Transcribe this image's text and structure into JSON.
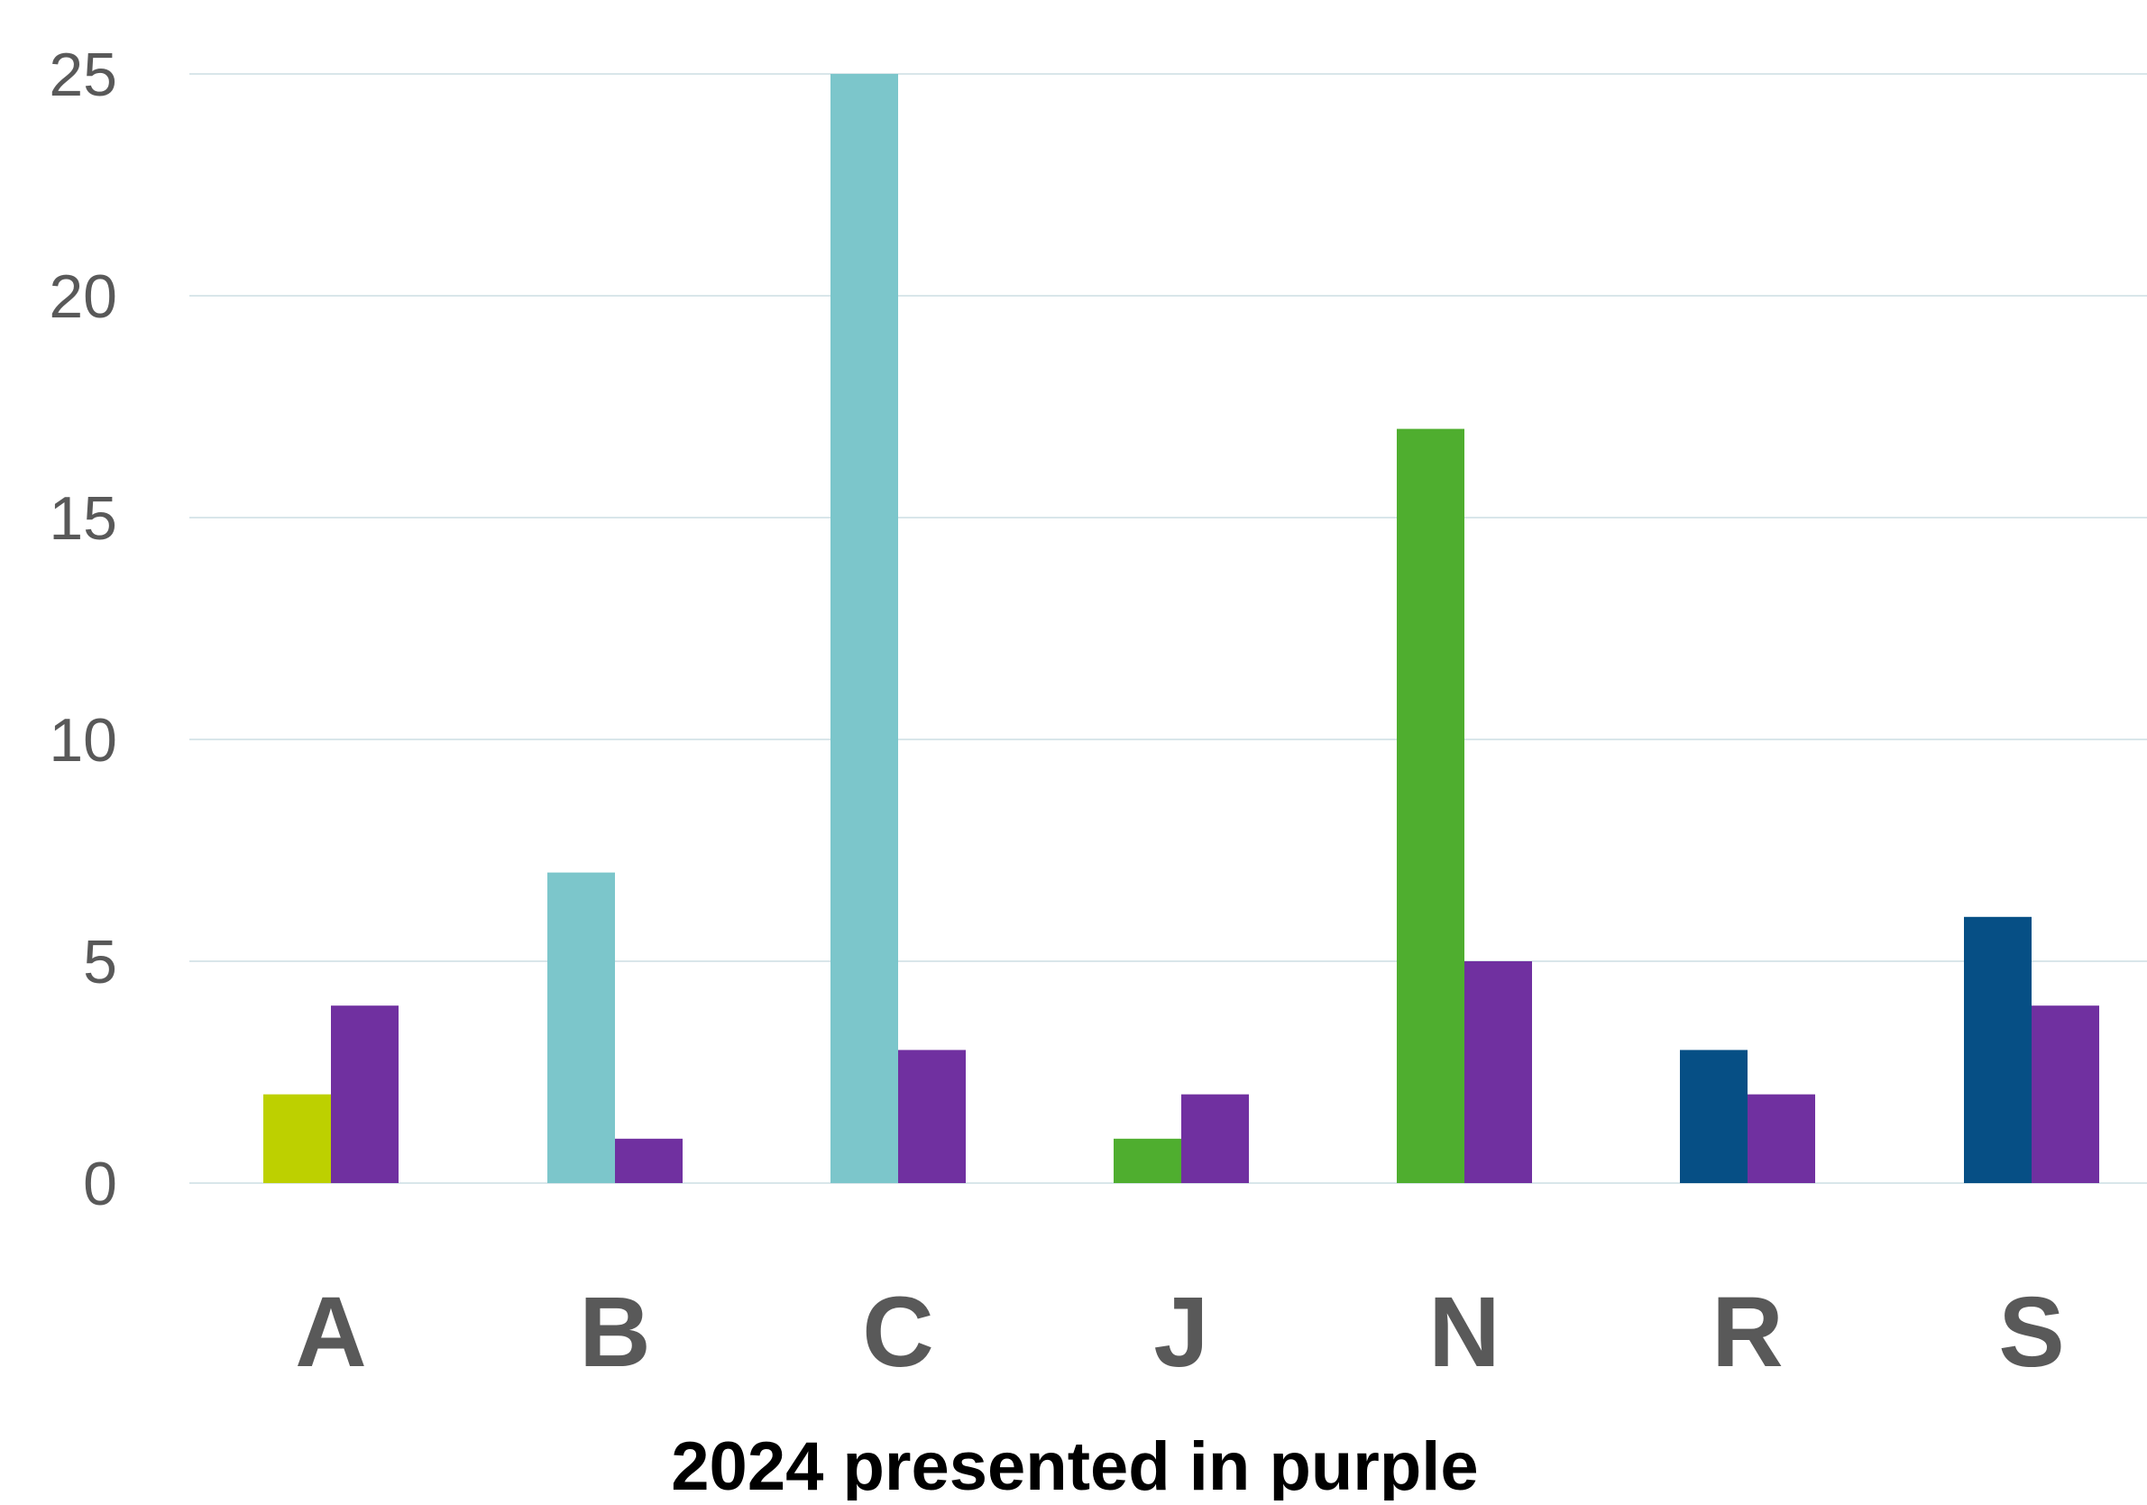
{
  "chart_data": {
    "type": "bar",
    "categories": [
      "A",
      "B",
      "C",
      "J",
      "N",
      "R",
      "S"
    ],
    "series": [
      {
        "values": [
          2,
          7,
          25,
          1,
          17,
          3,
          6
        ],
        "colors": [
          "#bdd000",
          "#7cc6cb",
          "#7cc6cb",
          "#4fae2f",
          "#4fae2f",
          "#064f85",
          "#064f85"
        ]
      },
      {
        "values": [
          4,
          1,
          3,
          2,
          5,
          2,
          4
        ],
        "color": "#7030a0"
      }
    ],
    "xlabel": "2024 presented in purple",
    "ylabel": "",
    "ylim": [
      0,
      25
    ],
    "yticks": [
      0,
      5,
      10,
      15,
      20,
      25
    ],
    "grid": true,
    "gridline_color": "#d9e6ea",
    "legend": "none"
  }
}
